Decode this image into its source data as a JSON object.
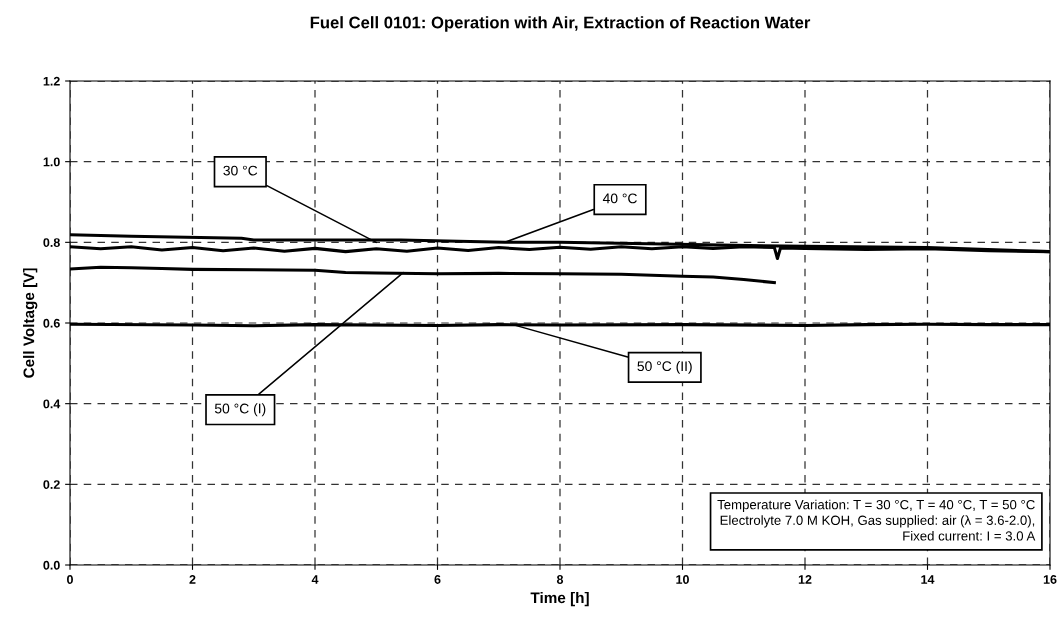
{
  "chart_data": {
    "type": "line",
    "title": "Fuel Cell 0101: Operation with Air, Extraction of Reaction Water",
    "xlabel": "Time [h]",
    "ylabel": "Cell Voltage [V]",
    "xlim": [
      0,
      16
    ],
    "xticks": [
      0,
      2,
      4,
      6,
      8,
      10,
      12,
      14,
      16
    ],
    "ylim": [
      0,
      1.2
    ],
    "yticks": [
      {
        "value": 0,
        "label": "0.0"
      },
      {
        "value": 0.2,
        "label": "0.2"
      },
      {
        "value": 0.4,
        "label": "0.4"
      },
      {
        "value": 0.6,
        "label": "0.6"
      },
      {
        "value": 0.8,
        "label": "0.8"
      },
      {
        "value": 1.0,
        "label": "1.0"
      },
      {
        "value": 1.2,
        "label": "1.2"
      }
    ],
    "grid": true,
    "legend": false,
    "marker": "none",
    "line_style": "solid",
    "series": [
      {
        "color": "#000000",
        "x": [
          0,
          1,
          2.8,
          3,
          5.4,
          7.1,
          8,
          10.4,
          12,
          14,
          16
        ],
        "values": [
          0.819,
          0.815,
          0.81,
          0.806,
          0.806,
          0.8,
          0.8,
          0.794,
          0.79,
          0.787,
          0.777
        ]
      },
      {
        "color": "#000000",
        "x": [
          0,
          0.5,
          1,
          1.5,
          2,
          2.5,
          3,
          3.5,
          4,
          4.5,
          5,
          5.5,
          6,
          6.5,
          7,
          7.5,
          8,
          8.5,
          9,
          9.5,
          10,
          10.5,
          11,
          11.5,
          11.55,
          11.6,
          12,
          13,
          14,
          15,
          16
        ],
        "values": [
          0.789,
          0.784,
          0.789,
          0.781,
          0.787,
          0.779,
          0.786,
          0.778,
          0.785,
          0.777,
          0.784,
          0.778,
          0.786,
          0.78,
          0.787,
          0.782,
          0.788,
          0.783,
          0.789,
          0.784,
          0.789,
          0.785,
          0.789,
          0.787,
          0.76,
          0.786,
          0.785,
          0.782,
          0.784,
          0.779,
          0.777
        ]
      },
      {
        "color": "#000000",
        "x": [
          0,
          0.5,
          1,
          1.5,
          2,
          3,
          4,
          4.5,
          5,
          6,
          7,
          8,
          9,
          10,
          10.5,
          11,
          11.5
        ],
        "values": [
          0.734,
          0.738,
          0.737,
          0.735,
          0.733,
          0.732,
          0.731,
          0.725,
          0.724,
          0.722,
          0.723,
          0.722,
          0.721,
          0.716,
          0.714,
          0.708,
          0.7
        ]
      },
      {
        "color": "#000000",
        "x": [
          0,
          2,
          3,
          4,
          6,
          7,
          8,
          10,
          12,
          13,
          14,
          15,
          16
        ],
        "values": [
          0.597,
          0.595,
          0.593,
          0.596,
          0.594,
          0.596,
          0.595,
          0.596,
          0.594,
          0.596,
          0.597,
          0.596,
          0.596
        ]
      }
    ],
    "annotations": [
      {
        "text": "30 °C",
        "x": 5.0,
        "y": 0.8
      },
      {
        "text": "40 °C",
        "x": 7.1,
        "y": 0.8
      },
      {
        "text": "50 °C (I)",
        "x": 5.44,
        "y": 0.725
      },
      {
        "text": "50 °C (II)",
        "x": 7.23,
        "y": 0.596
      },
      "Temperature Variation: T = 30 °C, T = 40 °C, T = 50 °C\nElectrolyte 7.0 M KOH, Gas supplied: air (λ = 3.6-2.0),\nFixed current: I = 3.0 A"
    ]
  }
}
